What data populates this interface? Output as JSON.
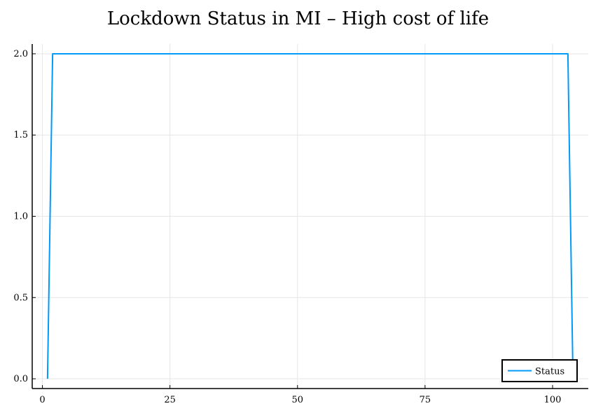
{
  "chart_data": {
    "type": "line",
    "title": "Lockdown Status in MI – High cost of life",
    "xlabel": "",
    "ylabel": "",
    "xlim": [
      -2,
      107
    ],
    "ylim": [
      -0.06,
      2.06
    ],
    "xticks": [
      0,
      25,
      50,
      75,
      100
    ],
    "yticks": [
      0.0,
      0.5,
      1.0,
      1.5,
      2.0
    ],
    "ytick_labels": [
      "0.0",
      "0.5",
      "1.0",
      "1.5",
      "2.0"
    ],
    "xtick_labels": [
      "0",
      "25",
      "50",
      "75",
      "100"
    ],
    "grid": true,
    "legend_position": "bottom-right",
    "series": [
      {
        "name": "Status",
        "color": "#009af9",
        "x": [
          1,
          2,
          103,
          104
        ],
        "y": [
          0,
          2,
          2,
          0
        ]
      }
    ]
  }
}
